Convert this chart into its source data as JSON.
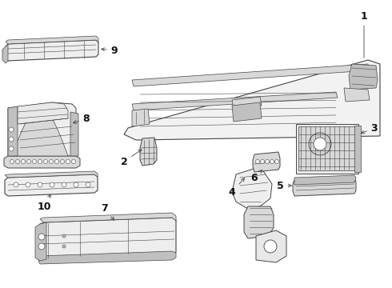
{
  "bg_color": "#ffffff",
  "lc": "#444444",
  "fc_light": "#f0f0f0",
  "fc_mid": "#d8d8d8",
  "fc_dark": "#c0c0c0",
  "lw_main": 0.7,
  "lw_thin": 0.4,
  "label_fs": 8,
  "fig_w": 4.9,
  "fig_h": 3.6,
  "fig_dpi": 100
}
